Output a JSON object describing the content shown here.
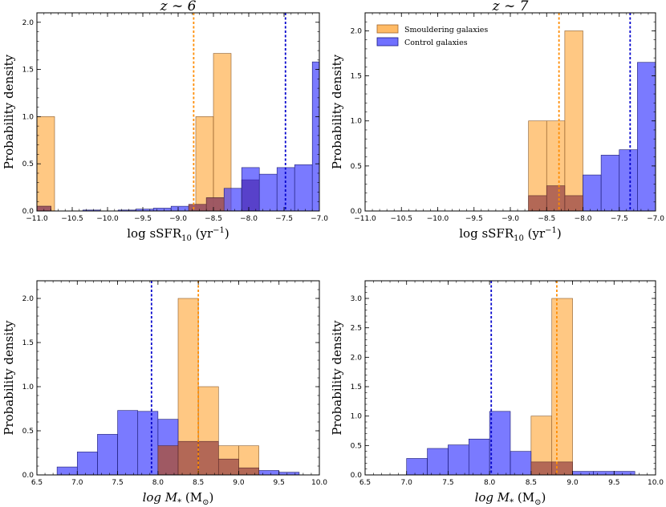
{
  "colors": {
    "smouldering": "#ffa331",
    "control": "#3333ff",
    "overlap": "#a6574f",
    "smouldering_line": "#ff8c00",
    "control_line": "#0000cc"
  },
  "chart_data": [
    {
      "type": "histogram",
      "title": "z ∼ 6",
      "xlabel": "log sSFR",
      "xlabel_sub": "10",
      "xlabel_unit": " (yr",
      "xlabel_sup": "−1",
      "xlabel_close": ")",
      "ylabel": "Probability density",
      "xlim": [
        -11.0,
        -7.0
      ],
      "ylim": [
        0,
        2.1
      ],
      "xticks": [
        -11.0,
        -10.5,
        -10.0,
        -9.5,
        -9.0,
        -8.5,
        -8.0,
        -7.5,
        -7.0
      ],
      "xtick_labels": [
        "−11.0",
        "−10.5",
        "−10.0",
        "−9.5",
        "−9.0",
        "−8.5",
        "−8.0",
        "−7.5",
        "−7.0"
      ],
      "yticks": [
        0.0,
        0.5,
        1.0,
        1.5,
        2.0
      ],
      "ytick_labels": [
        "0.0",
        "0.5",
        "1.0",
        "1.5",
        "2.0"
      ],
      "series": [
        {
          "name": "Smouldering galaxies",
          "bins": [
            [
              -11.0,
              -10.75,
              1.0
            ],
            [
              -8.75,
              -8.5,
              1.0
            ],
            [
              -8.5,
              -8.25,
              1.67
            ]
          ]
        },
        {
          "name": "Control galaxies",
          "bins": [
            [
              -11.0,
              -10.8,
              0.05
            ],
            [
              -10.35,
              -10.1,
              0.01
            ],
            [
              -9.85,
              -9.6,
              0.01
            ],
            [
              -9.6,
              -9.35,
              0.02
            ],
            [
              -9.35,
              -9.1,
              0.03
            ],
            [
              -9.1,
              -8.85,
              0.05
            ],
            [
              -8.85,
              -8.6,
              0.07
            ],
            [
              -8.6,
              -8.35,
              0.14
            ],
            [
              -8.35,
              -8.1,
              0.24
            ],
            [
              -8.1,
              -7.85,
              0.33
            ],
            [
              -7.85,
              -7.6,
              0.39
            ],
            [
              -7.6,
              -7.35,
              0.46
            ],
            [
              -7.35,
              -7.1,
              0.49
            ],
            [
              -7.1,
              -7.0,
              1.58
            ]
          ]
        },
        {
          "name": "overlap",
          "bins": [
            [
              -11.0,
              -10.8,
              0.05
            ],
            [
              -8.85,
              -8.6,
              0.07
            ],
            [
              -8.6,
              -8.35,
              0.14
            ],
            [
              -8.1,
              -7.85,
              0.33
            ]
          ]
        },
        {
          "name": "Control galaxies (upper)",
          "bins": [
            [
              -8.1,
              -7.85,
              0.46
            ]
          ]
        }
      ],
      "medians": {
        "smouldering": -8.78,
        "control": -7.48
      }
    },
    {
      "type": "histogram",
      "title": "z ∼ 7",
      "xlabel": "log sSFR",
      "xlabel_sub": "10",
      "xlabel_unit": " (yr",
      "xlabel_sup": "−1",
      "xlabel_close": ")",
      "ylabel": "Probability density",
      "xlim": [
        -11.0,
        -7.0
      ],
      "ylim": [
        0,
        2.2
      ],
      "xticks": [
        -11.0,
        -10.5,
        -10.0,
        -9.5,
        -9.0,
        -8.5,
        -8.0,
        -7.5,
        -7.0
      ],
      "xtick_labels": [
        "−11.0",
        "−10.5",
        "−10.0",
        "−9.5",
        "−9.0",
        "−8.5",
        "−8.0",
        "−7.5",
        "−7.0"
      ],
      "yticks": [
        0.0,
        0.5,
        1.0,
        1.5,
        2.0
      ],
      "ytick_labels": [
        "0.0",
        "0.5",
        "1.0",
        "1.5",
        "2.0"
      ],
      "legend": [
        "Smouldering galaxies",
        "Control galaxies"
      ],
      "series": [
        {
          "name": "Smouldering galaxies",
          "bins": [
            [
              -8.75,
              -8.5,
              1.0
            ],
            [
              -8.5,
              -8.25,
              1.0
            ],
            [
              -8.25,
              -8.0,
              2.0
            ]
          ]
        },
        {
          "name": "Control galaxies",
          "bins": [
            [
              -8.0,
              -7.75,
              0.4
            ],
            [
              -7.75,
              -7.5,
              0.62
            ],
            [
              -7.5,
              -7.25,
              0.68
            ],
            [
              -7.25,
              -7.0,
              1.65
            ]
          ]
        },
        {
          "name": "overlap",
          "bins": [
            [
              -8.75,
              -8.5,
              0.17
            ],
            [
              -8.5,
              -8.25,
              0.28
            ],
            [
              -8.25,
              -8.0,
              0.17
            ]
          ]
        }
      ],
      "medians": {
        "smouldering": -8.33,
        "control": -7.35
      }
    },
    {
      "type": "histogram",
      "title": "",
      "xlabel": "log M",
      "xlabel_sub": "*",
      "xlabel_unit": " (M",
      "xlabel_sup": "",
      "xlabel_close": ")",
      "xlabel_sun": "⊙",
      "ylabel": "Probability density",
      "xlim": [
        6.5,
        10.0
      ],
      "ylim": [
        0,
        2.2
      ],
      "xticks": [
        6.5,
        7.0,
        7.5,
        8.0,
        8.5,
        9.0,
        9.5,
        10.0
      ],
      "xtick_labels": [
        "6.5",
        "7.0",
        "7.5",
        "8.0",
        "8.5",
        "9.0",
        "9.5",
        "10.0"
      ],
      "yticks": [
        0.0,
        0.5,
        1.0,
        1.5,
        2.0
      ],
      "ytick_labels": [
        "0.0",
        "0.5",
        "1.0",
        "1.5",
        "2.0"
      ],
      "series": [
        {
          "name": "Smouldering galaxies",
          "bins": [
            [
              8.0,
              8.25,
              0.33
            ],
            [
              8.25,
              8.5,
              2.0
            ],
            [
              8.5,
              8.75,
              1.0
            ],
            [
              8.75,
              9.0,
              0.33
            ],
            [
              9.0,
              9.25,
              0.33
            ]
          ]
        },
        {
          "name": "Control galaxies",
          "bins": [
            [
              6.75,
              7.0,
              0.09
            ],
            [
              7.0,
              7.25,
              0.26
            ],
            [
              7.25,
              7.5,
              0.46
            ],
            [
              7.5,
              7.75,
              0.73
            ],
            [
              7.75,
              8.0,
              0.72
            ],
            [
              8.0,
              8.25,
              0.63
            ],
            [
              9.25,
              9.5,
              0.05
            ],
            [
              9.5,
              9.75,
              0.03
            ]
          ]
        },
        {
          "name": "overlap",
          "bins": [
            [
              8.0,
              8.25,
              0.33
            ],
            [
              8.25,
              8.5,
              0.38
            ],
            [
              8.5,
              8.75,
              0.38
            ],
            [
              8.75,
              9.0,
              0.18
            ],
            [
              9.0,
              9.25,
              0.08
            ]
          ]
        }
      ],
      "medians": {
        "smouldering": 8.5,
        "control": 7.92
      }
    },
    {
      "type": "histogram",
      "title": "",
      "xlabel": "log M",
      "xlabel_sub": "*",
      "xlabel_unit": " (M",
      "xlabel_sup": "",
      "xlabel_close": ")",
      "xlabel_sun": "⊙",
      "ylabel": "Probability density",
      "xlim": [
        6.5,
        10.0
      ],
      "ylim": [
        0,
        3.3
      ],
      "xticks": [
        6.5,
        7.0,
        7.5,
        8.0,
        8.5,
        9.0,
        9.5,
        10.0
      ],
      "xtick_labels": [
        "6.5",
        "7.0",
        "7.5",
        "8.0",
        "8.5",
        "9.0",
        "9.5",
        "10.0"
      ],
      "yticks": [
        0.0,
        0.5,
        1.0,
        1.5,
        2.0,
        2.5,
        3.0
      ],
      "ytick_labels": [
        "0.0",
        "0.5",
        "1.0",
        "1.5",
        "2.0",
        "2.5",
        "3.0"
      ],
      "series": [
        {
          "name": "Smouldering galaxies",
          "bins": [
            [
              8.5,
              8.75,
              1.0
            ],
            [
              8.75,
              9.0,
              3.0
            ]
          ]
        },
        {
          "name": "Control galaxies",
          "bins": [
            [
              7.0,
              7.25,
              0.28
            ],
            [
              7.25,
              7.5,
              0.45
            ],
            [
              7.5,
              7.75,
              0.51
            ],
            [
              7.75,
              8.0,
              0.61
            ],
            [
              8.0,
              8.25,
              1.08
            ],
            [
              8.25,
              8.5,
              0.4
            ],
            [
              9.0,
              9.25,
              0.06
            ],
            [
              9.25,
              9.5,
              0.06
            ],
            [
              9.5,
              9.75,
              0.06
            ]
          ]
        },
        {
          "name": "overlap",
          "bins": [
            [
              8.5,
              8.75,
              0.22
            ],
            [
              8.75,
              9.0,
              0.22
            ]
          ]
        }
      ],
      "medians": {
        "smouldering": 8.81,
        "control": 8.02
      }
    }
  ]
}
